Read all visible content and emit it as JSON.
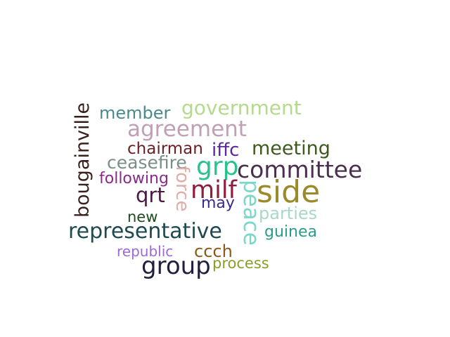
{
  "words": {
    "bougainville": {
      "text": "bougainville",
      "color": "#3a1f1a"
    },
    "member": {
      "text": "member",
      "color": "#4a8a8c"
    },
    "government": {
      "text": "government",
      "color": "#b5d98f"
    },
    "agreement": {
      "text": "agreement",
      "color": "#c0a0b5"
    },
    "chairman": {
      "text": "chairman",
      "color": "#6b1f24"
    },
    "iffc": {
      "text": "iffc",
      "color": "#5a2a9c"
    },
    "meeting": {
      "text": "meeting",
      "color": "#3f5a1f"
    },
    "ceasefire": {
      "text": "ceasefire",
      "color": "#7a8f8a"
    },
    "grp": {
      "text": "grp",
      "color": "#2ac28c"
    },
    "committee": {
      "text": "committee",
      "color": "#4a2f4f"
    },
    "following": {
      "text": "following",
      "color": "#8a2a8c"
    },
    "force": {
      "text": "force",
      "color": "#e0aca6"
    },
    "qrt": {
      "text": "qrt",
      "color": "#4a1a3f"
    },
    "milf": {
      "text": "milf",
      "color": "#8c1f3f"
    },
    "peace": {
      "text": "peace",
      "color": "#7ad8c8"
    },
    "side": {
      "text": "side",
      "color": "#9c8a2a"
    },
    "may": {
      "text": "may",
      "color": "#3a2a8c"
    },
    "parties": {
      "text": "parties",
      "color": "#a8d8c8"
    },
    "new": {
      "text": "new",
      "color": "#1f4a1f"
    },
    "representative": {
      "text": "representative",
      "color": "#1f4a4f"
    },
    "guinea": {
      "text": "guinea",
      "color": "#2a9c8c"
    },
    "republic": {
      "text": "republic",
      "color": "#9c6ad8"
    },
    "ccch": {
      "text": "ccch",
      "color": "#8c5a1a"
    },
    "group": {
      "text": "group",
      "color": "#1f1f3f"
    },
    "process": {
      "text": "process",
      "color": "#8c9c2a"
    }
  }
}
